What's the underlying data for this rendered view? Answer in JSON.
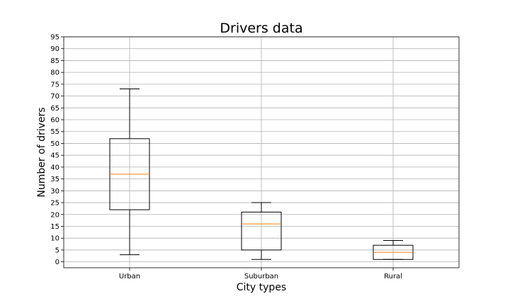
{
  "chart_data": {
    "type": "box",
    "title": "Drivers data",
    "xlabel": "City types",
    "ylabel": "Number of drivers",
    "categories": [
      "Urban",
      "Suburban",
      "Rural"
    ],
    "boxes": [
      {
        "whisker_low": 3,
        "q1": 22,
        "median": 37,
        "q3": 52,
        "whisker_high": 73
      },
      {
        "whisker_low": 1,
        "q1": 5,
        "median": 16,
        "q3": 21,
        "whisker_high": 25
      },
      {
        "whisker_low": 1,
        "q1": 1,
        "median": 4,
        "q3": 7,
        "whisker_high": 9
      }
    ],
    "ylim": [
      -2.5,
      95
    ],
    "yticks": [
      0,
      5,
      10,
      15,
      20,
      25,
      30,
      35,
      40,
      45,
      50,
      55,
      60,
      65,
      70,
      75,
      80,
      85,
      90,
      95
    ],
    "grid": true,
    "colors": {
      "median": "#ff7f0e",
      "box": "#000000",
      "grid": "#b0b0b0"
    }
  }
}
